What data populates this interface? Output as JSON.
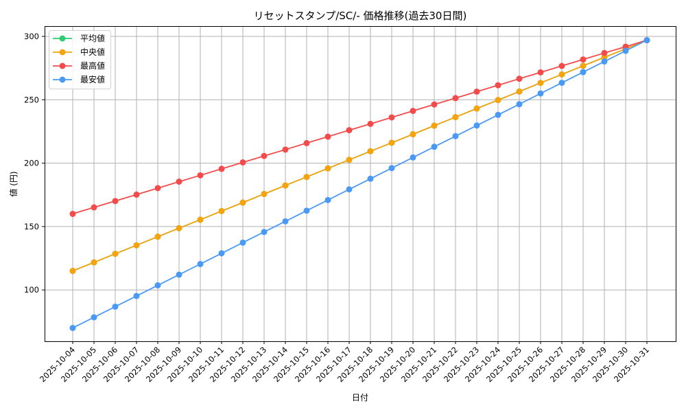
{
  "chart_data": {
    "type": "line",
    "title": "リセットスタンプ/SC/- 価格推移(過去30日間)",
    "xlabel": "日付",
    "ylabel": "値 (円)",
    "ylim": [
      60,
      308
    ],
    "yticks": [
      100,
      150,
      200,
      250,
      300
    ],
    "grid": true,
    "legend_position": "upper left",
    "categories": [
      "2025-10-04",
      "2025-10-05",
      "2025-10-06",
      "2025-10-07",
      "2025-10-08",
      "2025-10-09",
      "2025-10-10",
      "2025-10-11",
      "2025-10-12",
      "2025-10-13",
      "2025-10-14",
      "2025-10-15",
      "2025-10-16",
      "2025-10-17",
      "2025-10-18",
      "2025-10-19",
      "2025-10-20",
      "2025-10-21",
      "2025-10-22",
      "2025-10-23",
      "2025-10-24",
      "2025-10-25",
      "2025-10-26",
      "2025-10-27",
      "2025-10-28",
      "2025-10-29",
      "2025-10-30",
      "2025-10-31"
    ],
    "series": [
      {
        "name": "平均値",
        "color": "#2ecc71",
        "values": [
          115,
          121.7,
          128.5,
          135.2,
          142,
          148.7,
          155.4,
          162.2,
          168.9,
          175.7,
          182.4,
          189.1,
          195.9,
          202.6,
          209.4,
          216.1,
          222.8,
          229.6,
          236.3,
          243.1,
          249.8,
          256.5,
          263.3,
          270,
          276.8,
          283.5,
          290.2,
          297
        ]
      },
      {
        "name": "中央値",
        "color": "#f5a30f",
        "values": [
          115,
          121.7,
          128.5,
          135.2,
          142,
          148.7,
          155.4,
          162.2,
          168.9,
          175.7,
          182.4,
          189.1,
          195.9,
          202.6,
          209.4,
          216.1,
          222.8,
          229.6,
          236.3,
          243.1,
          249.8,
          256.5,
          263.3,
          270,
          276.8,
          283.5,
          290.2,
          297
        ]
      },
      {
        "name": "最高値",
        "color": "#f24b4b",
        "values": [
          160,
          165.1,
          170.1,
          175.2,
          180.3,
          185.4,
          190.4,
          195.5,
          200.6,
          205.7,
          210.7,
          215.8,
          220.9,
          226,
          231,
          236.1,
          241.2,
          246.3,
          251.3,
          256.4,
          261.5,
          266.6,
          271.6,
          276.7,
          281.8,
          286.9,
          291.9,
          297
        ]
      },
      {
        "name": "最安値",
        "color": "#4a9af5",
        "values": [
          70,
          78.4,
          86.8,
          95.2,
          103.6,
          112,
          120.4,
          128.9,
          137.3,
          145.7,
          154.1,
          162.5,
          170.9,
          179.3,
          187.7,
          196.1,
          204.5,
          212.9,
          221.3,
          229.7,
          238.1,
          246.5,
          255,
          263.4,
          271.8,
          280.2,
          288.6,
          297
        ]
      }
    ]
  }
}
